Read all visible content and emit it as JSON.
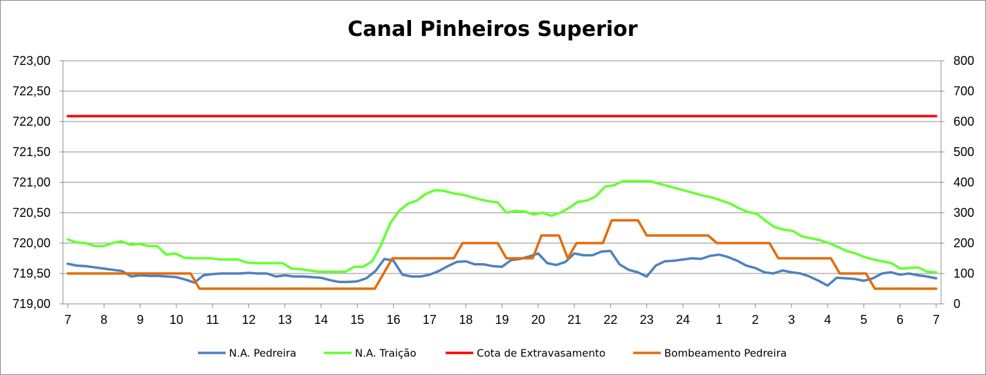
{
  "chart_data": {
    "type": "line",
    "title": "Canal Pinheiros Superior",
    "x_tick_labels": [
      "7",
      "8",
      "9",
      "10",
      "11",
      "12",
      "13",
      "14",
      "15",
      "16",
      "17",
      "18",
      "19",
      "20",
      "21",
      "22",
      "23",
      "24",
      "1",
      "2",
      "3",
      "4",
      "5",
      "6",
      "7"
    ],
    "y_left": {
      "ylim": [
        719.0,
        723.0
      ],
      "tick_labels": [
        "719,00",
        "719,50",
        "720,00",
        "720,50",
        "721,00",
        "721,50",
        "722,00",
        "722,50",
        "723,00"
      ]
    },
    "y_right": {
      "ylim": [
        0,
        800
      ],
      "tick_labels": [
        "0",
        "100",
        "200",
        "300",
        "400",
        "500",
        "600",
        "700",
        "800"
      ]
    },
    "grid": true,
    "legend_position": "bottom",
    "series": [
      {
        "name": "N.A. Pedreira",
        "axis": "left",
        "color": "#4f81bd",
        "values": [
          719.66,
          719.63,
          719.62,
          719.6,
          719.58,
          719.56,
          719.54,
          719.45,
          719.47,
          719.46,
          719.46,
          719.45,
          719.44,
          719.4,
          719.35,
          719.47,
          719.49,
          719.5,
          719.5,
          719.5,
          719.51,
          719.5,
          719.5,
          719.45,
          719.47,
          719.45,
          719.45,
          719.44,
          719.43,
          719.39,
          719.36,
          719.36,
          719.37,
          719.42,
          719.54,
          719.74,
          719.71,
          719.48,
          719.45,
          719.45,
          719.48,
          719.54,
          719.62,
          719.69,
          719.7,
          719.65,
          719.65,
          719.62,
          719.61,
          719.72,
          719.74,
          719.78,
          719.83,
          719.67,
          719.64,
          719.69,
          719.83,
          719.8,
          719.8,
          719.86,
          719.87,
          719.65,
          719.56,
          719.52,
          719.45,
          719.63,
          719.7,
          719.71,
          719.73,
          719.75,
          719.74,
          719.79,
          719.81,
          719.77,
          719.71,
          719.63,
          719.59,
          719.52,
          719.5,
          719.55,
          719.52,
          719.5,
          719.45,
          719.38,
          719.3,
          719.43,
          719.42,
          719.41,
          719.38,
          719.42,
          719.5,
          719.52,
          719.48,
          719.5,
          719.47,
          719.45,
          719.42
        ]
      },
      {
        "name": "N.A. Traição",
        "axis": "left",
        "color": "#66ff33",
        "values": [
          720.06,
          720.01,
          720.0,
          719.95,
          719.95,
          720.0,
          720.03,
          719.97,
          719.99,
          719.95,
          719.95,
          719.81,
          719.83,
          719.76,
          719.75,
          719.75,
          719.75,
          719.73,
          719.73,
          719.73,
          719.68,
          719.67,
          719.67,
          719.67,
          719.67,
          719.58,
          719.57,
          719.55,
          719.53,
          719.53,
          719.53,
          719.53,
          719.61,
          719.61,
          719.7,
          719.97,
          720.32,
          720.53,
          720.65,
          720.7,
          720.81,
          720.87,
          720.86,
          720.82,
          720.8,
          720.76,
          720.72,
          720.69,
          720.67,
          720.5,
          720.53,
          720.52,
          720.47,
          720.5,
          720.45,
          720.5,
          720.58,
          720.68,
          720.7,
          720.77,
          720.93,
          720.95,
          721.02,
          721.02,
          721.02,
          721.02,
          720.98,
          720.94,
          720.9,
          720.86,
          720.82,
          720.78,
          720.75,
          720.7,
          720.65,
          720.57,
          720.51,
          720.48,
          720.36,
          720.26,
          720.22,
          720.2,
          720.11,
          720.08,
          720.05,
          720.0,
          719.94,
          719.87,
          719.83,
          719.77,
          719.73,
          719.7,
          719.67,
          719.58,
          719.59,
          719.6,
          719.53,
          719.52
        ]
      },
      {
        "name": "Cota de Extravasamento",
        "axis": "left",
        "color": "#ff0000",
        "values": [
          722.09,
          722.09
        ]
      },
      {
        "name": "Bombeamento Pedreira",
        "axis": "right",
        "color": "#e46c0a",
        "values": [
          100,
          100,
          100,
          100,
          100,
          100,
          100,
          100,
          100,
          100,
          100,
          100,
          100,
          100,
          100,
          50,
          50,
          50,
          50,
          50,
          50,
          50,
          50,
          50,
          50,
          50,
          50,
          50,
          50,
          50,
          50,
          50,
          50,
          50,
          50,
          50,
          100,
          150,
          150,
          150,
          150,
          150,
          150,
          150,
          150,
          200,
          200,
          200,
          200,
          200,
          150,
          150,
          150,
          150,
          225,
          225,
          225,
          150,
          200,
          200,
          200,
          200,
          275,
          275,
          275,
          275,
          225,
          225,
          225,
          225,
          225,
          225,
          225,
          225,
          200,
          200,
          200,
          200,
          200,
          200,
          200,
          150,
          150,
          150,
          150,
          150,
          150,
          150,
          100,
          100,
          100,
          100,
          50,
          50,
          50,
          50,
          50,
          50,
          50,
          50
        ]
      }
    ]
  }
}
